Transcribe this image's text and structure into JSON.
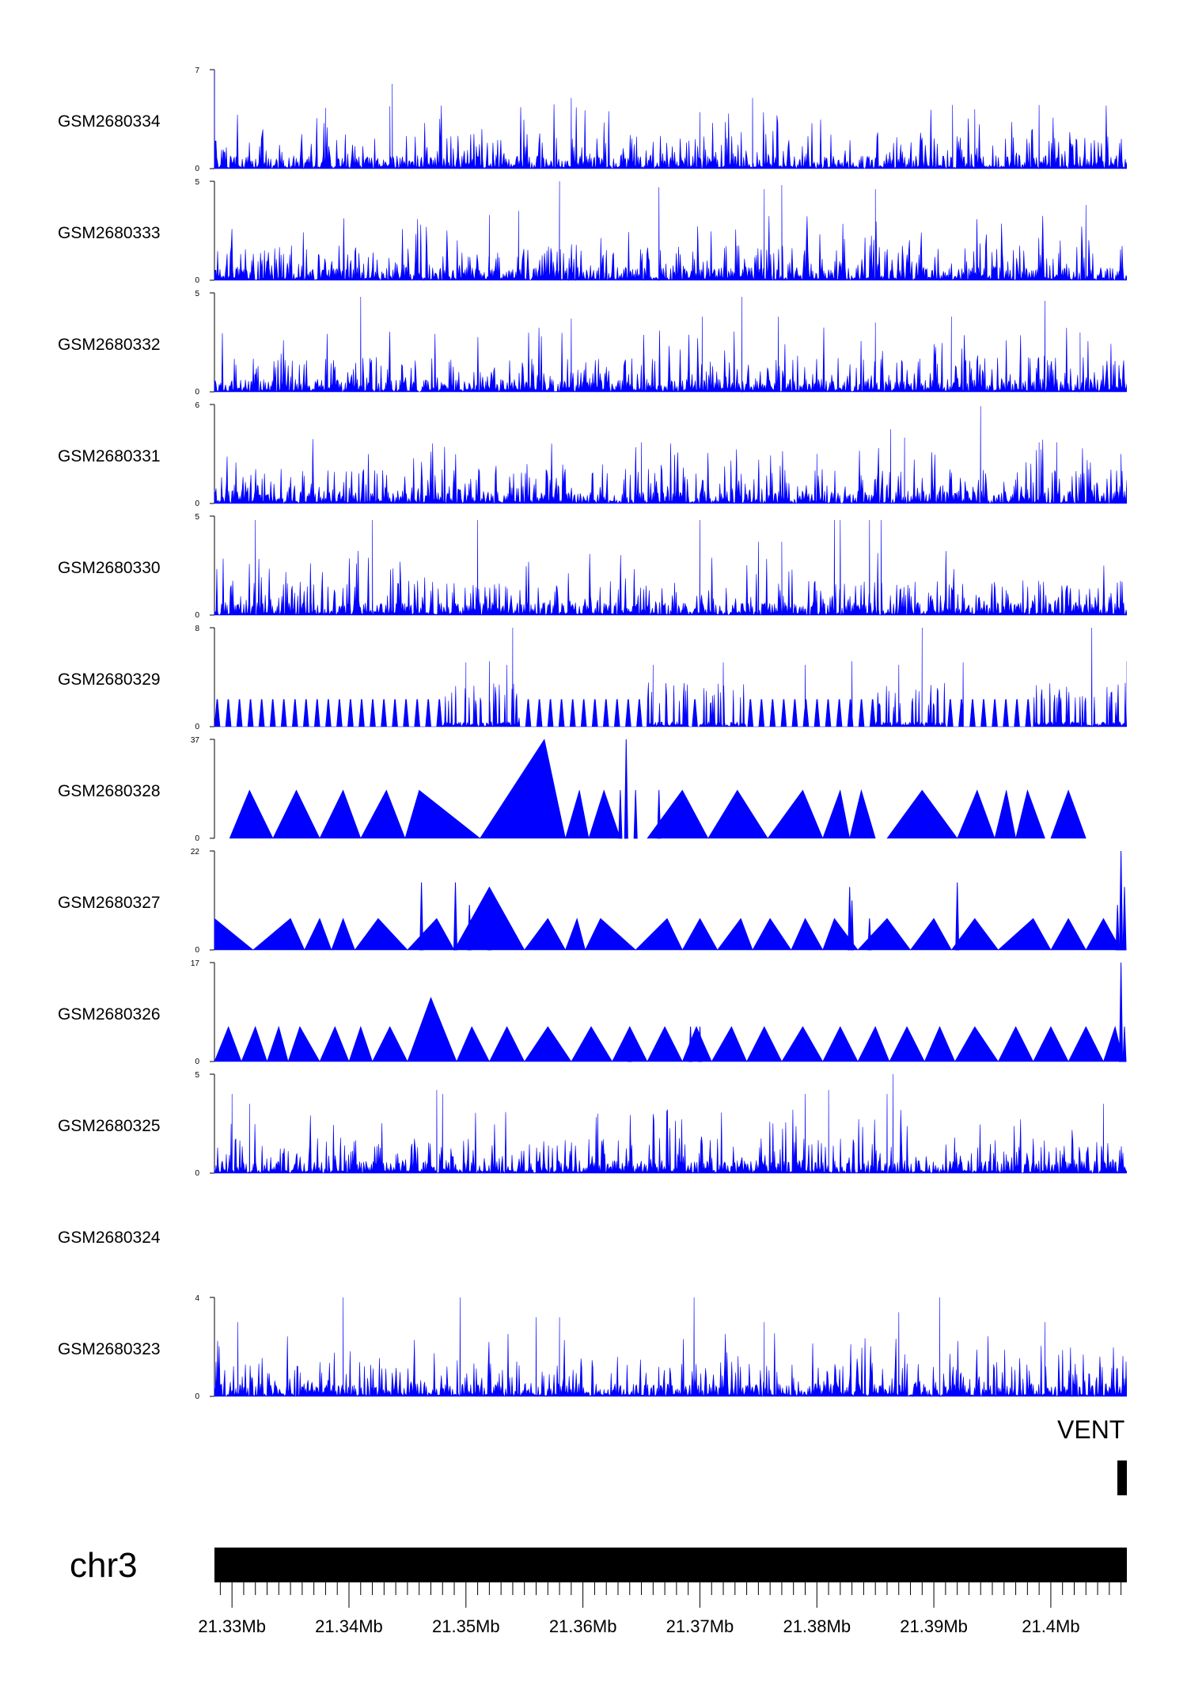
{
  "chart_data": {
    "type": "area",
    "chromosome": "chr3",
    "gene_label": "VENT",
    "xlim_mb": [
      21.3285,
      21.4065
    ],
    "x_tick_labels": [
      "21.33Mb",
      "21.34Mb",
      "21.35Mb",
      "21.36Mb",
      "21.37Mb",
      "21.38Mb",
      "21.39Mb",
      "21.4Mb"
    ],
    "x_major_ticks_mb": [
      21.33,
      21.34,
      21.35,
      21.36,
      21.37,
      21.38,
      21.39,
      21.4
    ],
    "series_color": "#0000ff",
    "tracks": [
      {
        "name": "GSM2680334",
        "ymax": 7,
        "ytick_labels": [
          "0",
          "7"
        ],
        "pattern": "dense",
        "seed": 11,
        "peaks": [
          [
            21.3285,
            7
          ],
          [
            21.3437,
            6
          ],
          [
            21.3435,
            4.4
          ],
          [
            21.359,
            5
          ],
          [
            21.3745,
            5
          ],
          [
            21.3916,
            4.5
          ],
          [
            21.3935,
            4.2
          ],
          [
            21.399,
            4.5
          ],
          [
            21.37,
            4
          ],
          [
            21.338,
            4.3
          ]
        ]
      },
      {
        "name": "GSM2680333",
        "ymax": 5,
        "ytick_labels": [
          "0",
          "5"
        ],
        "pattern": "dense",
        "seed": 23,
        "peaks": [
          [
            21.358,
            5
          ],
          [
            21.3665,
            4.7
          ],
          [
            21.3755,
            4.6
          ],
          [
            21.377,
            4.8
          ],
          [
            21.385,
            4.6
          ],
          [
            21.3545,
            3.5
          ],
          [
            21.352,
            3.3
          ],
          [
            21.403,
            3.8
          ]
        ]
      },
      {
        "name": "GSM2680332",
        "ymax": 5,
        "ytick_labels": [
          "0",
          "5"
        ],
        "pattern": "dense",
        "seed": 37,
        "peaks": [
          [
            21.341,
            4.8
          ],
          [
            21.3736,
            4.8
          ],
          [
            21.3995,
            4.6
          ],
          [
            21.3702,
            3.8
          ],
          [
            21.3767,
            3.8
          ],
          [
            21.359,
            3.7
          ],
          [
            21.3915,
            3.8
          ],
          [
            21.4025,
            3
          ],
          [
            21.385,
            3.5
          ]
        ]
      },
      {
        "name": "GSM2680331",
        "ymax": 6,
        "ytick_labels": [
          "0",
          "6"
        ],
        "pattern": "dense",
        "seed": 41,
        "peaks": [
          [
            21.394,
            5.9
          ],
          [
            21.3863,
            4.5
          ],
          [
            21.3875,
            4
          ],
          [
            21.365,
            3.7
          ],
          [
            21.399,
            3.7
          ],
          [
            21.4005,
            3.7
          ],
          [
            21.406,
            3
          ],
          [
            21.38,
            3
          ]
        ]
      },
      {
        "name": "GSM2680330",
        "ymax": 5,
        "ytick_labels": [
          "0",
          "5"
        ],
        "pattern": "dense",
        "seed": 53,
        "peaks": [
          [
            21.332,
            4.8
          ],
          [
            21.342,
            4.8
          ],
          [
            21.351,
            4.8
          ],
          [
            21.37,
            4.8
          ],
          [
            21.3815,
            4.8
          ],
          [
            21.382,
            4.8
          ],
          [
            21.3845,
            4.8
          ],
          [
            21.3855,
            4.8
          ],
          [
            21.37,
            4
          ],
          [
            21.375,
            3.7
          ],
          [
            21.377,
            3.7
          ]
        ]
      },
      {
        "name": "GSM2680329",
        "ymax": 8,
        "ytick_labels": [
          "0",
          "8"
        ],
        "pattern": "mixed",
        "seed": 61,
        "peaks": [
          [
            21.354,
            8
          ],
          [
            21.3535,
            5
          ],
          [
            21.352,
            5.3
          ],
          [
            21.35,
            5.2
          ],
          [
            21.383,
            5.3
          ],
          [
            21.389,
            8
          ],
          [
            21.3925,
            5.2
          ],
          [
            21.4035,
            8
          ],
          [
            21.4065,
            5.3
          ],
          [
            21.366,
            5
          ],
          [
            21.372,
            5.2
          ],
          [
            21.379,
            5
          ],
          [
            21.387,
            5
          ]
        ]
      },
      {
        "name": "GSM2680328",
        "ymax": 37,
        "ytick_labels": [
          "0",
          "37"
        ],
        "pattern": "sparse",
        "seed": 71,
        "triangles": [
          [
            21.3298,
            21.3315,
            21.3335,
            18
          ],
          [
            21.3335,
            21.3355,
            21.3375,
            18
          ],
          [
            21.3375,
            21.3395,
            21.341,
            18
          ],
          [
            21.341,
            21.3432,
            21.3448,
            18
          ],
          [
            21.3448,
            21.346,
            21.3512,
            18
          ],
          [
            21.3512,
            21.3567,
            21.3585,
            37
          ],
          [
            21.3585,
            21.3597,
            21.3605,
            18
          ],
          [
            21.3605,
            21.3618,
            21.3632,
            18
          ],
          [
            21.3655,
            21.3685,
            21.3707,
            18
          ],
          [
            21.3707,
            21.3732,
            21.3758,
            18
          ],
          [
            21.3758,
            21.3788,
            21.3805,
            18
          ],
          [
            21.3805,
            21.382,
            21.3828,
            18
          ],
          [
            21.3828,
            21.3838,
            21.385,
            18
          ],
          [
            21.386,
            21.389,
            21.392,
            18
          ],
          [
            21.392,
            21.3937,
            21.3952,
            18
          ],
          [
            21.3952,
            21.3962,
            21.397,
            18
          ],
          [
            21.397,
            21.398,
            21.3995,
            18
          ],
          [
            21.4,
            21.4015,
            21.403,
            18
          ]
        ],
        "peaks": [
          [
            21.3637,
            37
          ],
          [
            21.3632,
            18
          ],
          [
            21.3645,
            18
          ],
          [
            21.3665,
            18
          ]
        ]
      },
      {
        "name": "GSM2680327",
        "ymax": 22,
        "ytick_labels": [
          "0",
          "22"
        ],
        "pattern": "sparse",
        "seed": 83,
        "triangles": [
          [
            21.3285,
            21.3285,
            21.3318,
            7
          ],
          [
            21.3318,
            21.335,
            21.3362,
            7
          ],
          [
            21.3362,
            21.3375,
            21.3385,
            7
          ],
          [
            21.3385,
            21.3395,
            21.3405,
            7
          ],
          [
            21.3405,
            21.3425,
            21.345,
            7
          ],
          [
            21.345,
            21.3475,
            21.349,
            7
          ],
          [
            21.349,
            21.352,
            21.355,
            14
          ],
          [
            21.355,
            21.357,
            21.3585,
            7
          ],
          [
            21.3585,
            21.3595,
            21.3602,
            7
          ],
          [
            21.3602,
            21.3615,
            21.3645,
            7
          ],
          [
            21.3645,
            21.3672,
            21.3685,
            7
          ],
          [
            21.3685,
            21.37,
            21.3715,
            7
          ],
          [
            21.3715,
            21.3735,
            21.3745,
            7
          ],
          [
            21.3745,
            21.376,
            21.3778,
            7
          ],
          [
            21.3778,
            21.379,
            21.3805,
            7
          ],
          [
            21.3805,
            21.3815,
            21.3835,
            7
          ],
          [
            21.3835,
            21.386,
            21.388,
            7
          ],
          [
            21.388,
            21.39,
            21.3915,
            7
          ],
          [
            21.3915,
            21.3935,
            21.3955,
            7
          ],
          [
            21.3955,
            21.3985,
            21.4,
            7
          ],
          [
            21.4,
            21.4015,
            21.403,
            7
          ],
          [
            21.403,
            21.4045,
            21.406,
            7
          ]
        ],
        "peaks": [
          [
            21.3462,
            15
          ],
          [
            21.3491,
            15
          ],
          [
            21.3503,
            10
          ],
          [
            21.352,
            12
          ],
          [
            21.383,
            11
          ],
          [
            21.3828,
            14
          ],
          [
            21.3845,
            7
          ],
          [
            21.392,
            15
          ],
          [
            21.406,
            22
          ],
          [
            21.4063,
            14
          ],
          [
            21.4057,
            10
          ]
        ]
      },
      {
        "name": "GSM2680326",
        "ymax": 17,
        "ytick_labels": [
          "0",
          "17"
        ],
        "pattern": "sparse",
        "seed": 97,
        "triangles": [
          [
            21.3285,
            21.3297,
            21.3308,
            6
          ],
          [
            21.3308,
            21.332,
            21.333,
            6
          ],
          [
            21.333,
            21.334,
            21.3348,
            6
          ],
          [
            21.3348,
            21.3358,
            21.3375,
            6
          ],
          [
            21.3375,
            21.3388,
            21.34,
            6
          ],
          [
            21.34,
            21.341,
            21.342,
            6
          ],
          [
            21.342,
            21.3435,
            21.345,
            6
          ],
          [
            21.345,
            21.347,
            21.3492,
            11
          ],
          [
            21.3492,
            21.3505,
            21.352,
            6
          ],
          [
            21.352,
            21.3535,
            21.355,
            6
          ],
          [
            21.355,
            21.357,
            21.359,
            6
          ],
          [
            21.359,
            21.3607,
            21.3625,
            6
          ],
          [
            21.3625,
            21.364,
            21.3655,
            6
          ],
          [
            21.3655,
            21.367,
            21.3685,
            6
          ],
          [
            21.3685,
            21.3697,
            21.371,
            6
          ],
          [
            21.371,
            21.3727,
            21.374,
            6
          ],
          [
            21.374,
            21.3755,
            21.377,
            6
          ],
          [
            21.377,
            21.3788,
            21.3805,
            6
          ],
          [
            21.3805,
            21.382,
            21.3835,
            6
          ],
          [
            21.3835,
            21.385,
            21.3862,
            6
          ],
          [
            21.3862,
            21.3877,
            21.3892,
            6
          ],
          [
            21.3892,
            21.3905,
            21.3918,
            6
          ],
          [
            21.3918,
            21.3935,
            21.3955,
            6
          ],
          [
            21.3955,
            21.397,
            21.3985,
            6
          ],
          [
            21.3985,
            21.4,
            21.4015,
            6
          ],
          [
            21.4015,
            21.403,
            21.4045,
            6
          ],
          [
            21.4045,
            21.4055,
            21.4062,
            6
          ]
        ],
        "peaks": [
          [
            21.406,
            17
          ],
          [
            21.4063,
            6
          ],
          [
            21.3692,
            6
          ],
          [
            21.37,
            6
          ],
          [
            21.364,
            6
          ]
        ]
      },
      {
        "name": "GSM2680325",
        "ymax": 5,
        "ytick_labels": [
          "0",
          "5"
        ],
        "pattern": "dense",
        "seed": 109,
        "peaks": [
          [
            21.3865,
            5
          ],
          [
            21.386,
            4
          ],
          [
            21.3475,
            4.2
          ],
          [
            21.348,
            4
          ],
          [
            21.379,
            4
          ],
          [
            21.381,
            4.2
          ],
          [
            21.33,
            4
          ],
          [
            21.3315,
            3.5
          ],
          [
            21.4045,
            3.5
          ]
        ]
      },
      {
        "name": "GSM2680324",
        "ymax": null,
        "ytick_labels": [],
        "pattern": "empty",
        "seed": 0,
        "peaks": []
      },
      {
        "name": "GSM2680323",
        "ymax": 4,
        "ytick_labels": [
          "0",
          "4"
        ],
        "pattern": "dense",
        "seed": 127,
        "peaks": [
          [
            21.3395,
            4
          ],
          [
            21.3495,
            4
          ],
          [
            21.3695,
            4
          ],
          [
            21.3905,
            4
          ],
          [
            21.358,
            3.2
          ],
          [
            21.356,
            3.2
          ],
          [
            21.3755,
            3
          ],
          [
            21.387,
            3.4
          ],
          [
            21.3995,
            3
          ],
          [
            21.3305,
            3
          ]
        ]
      }
    ]
  }
}
